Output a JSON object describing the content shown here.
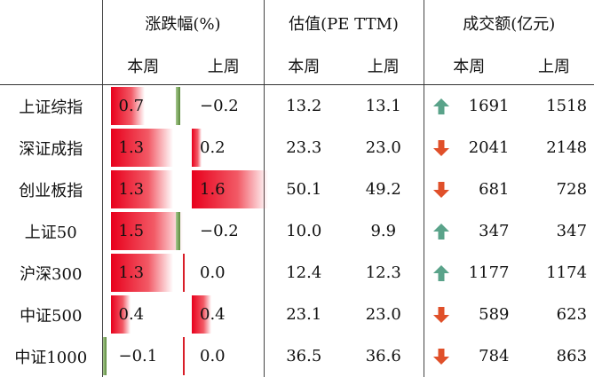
{
  "header": {
    "group_change": "涨跌幅(%)",
    "group_pe": "估值(PE TTM)",
    "group_turnover": "成交额(亿元)",
    "this_week": "本周",
    "last_week": "上周"
  },
  "rows": [
    {
      "name": "上证综指",
      "chg_this": "0.7",
      "chg_last": "−0.2",
      "chg_this_v": 0.7,
      "chg_last_v": -0.2,
      "pe_this": "13.2",
      "pe_last": "13.1",
      "trend": "up",
      "vol_this": "1691",
      "vol_last": "1518"
    },
    {
      "name": "深证成指",
      "chg_this": "1.3",
      "chg_last": "0.2",
      "chg_this_v": 1.3,
      "chg_last_v": 0.2,
      "pe_this": "23.3",
      "pe_last": "23.0",
      "trend": "down",
      "vol_this": "2041",
      "vol_last": "2148"
    },
    {
      "name": "创业板指",
      "chg_this": "1.3",
      "chg_last": "1.6",
      "chg_this_v": 1.3,
      "chg_last_v": 1.6,
      "pe_this": "50.1",
      "pe_last": "49.2",
      "trend": "down",
      "vol_this": "681",
      "vol_last": "728"
    },
    {
      "name": "上证50",
      "chg_this": "1.5",
      "chg_last": "−0.2",
      "chg_this_v": 1.5,
      "chg_last_v": -0.2,
      "pe_this": "10.0",
      "pe_last": "9.9",
      "trend": "up",
      "vol_this": "347",
      "vol_last": "347"
    },
    {
      "name": "沪深300",
      "chg_this": "1.3",
      "chg_last": "0.0",
      "chg_this_v": 1.3,
      "chg_last_v": 0.0,
      "pe_this": "12.4",
      "pe_last": "12.3",
      "trend": "up",
      "vol_this": "1177",
      "vol_last": "1174"
    },
    {
      "name": "中证500",
      "chg_this": "0.4",
      "chg_last": "0.4",
      "chg_this_v": 0.4,
      "chg_last_v": 0.4,
      "pe_this": "23.1",
      "pe_last": "23.0",
      "trend": "down",
      "vol_this": "589",
      "vol_last": "623"
    },
    {
      "name": "中证1000",
      "chg_this": "−0.1",
      "chg_last": "0.0",
      "chg_this_v": -0.1,
      "chg_last_v": 0.0,
      "pe_this": "36.5",
      "pe_last": "36.6",
      "trend": "down",
      "vol_this": "784",
      "vol_last": "863"
    }
  ],
  "colors": {
    "up_arrow": "#5aa38a",
    "down_arrow": "#e0502a",
    "pos_bar": "#e8001c",
    "neg_bar": "#5a8a3a"
  },
  "icons": {
    "up": "arrow-up-icon",
    "down": "arrow-down-icon"
  }
}
